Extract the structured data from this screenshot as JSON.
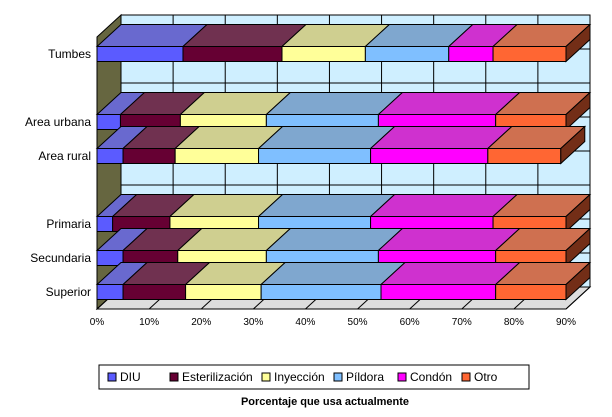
{
  "chart_data": {
    "type": "bar",
    "orientation": "horizontal",
    "stacked": true,
    "three_d": true,
    "categories": [
      "Tumbes",
      "",
      "Area urbana",
      "Area rural",
      "",
      "Primaria",
      "Secundaria",
      "Superior"
    ],
    "series": [
      {
        "name": "DIU",
        "color": "#5b5bff",
        "values": [
          16.5,
          0,
          4.5,
          5,
          0,
          3,
          5,
          5
        ]
      },
      {
        "name": "Esterilización",
        "color": "#660033",
        "values": [
          19,
          0,
          11.5,
          10,
          0,
          11,
          10.5,
          12
        ]
      },
      {
        "name": "Inyección",
        "color": "#ffff99",
        "values": [
          16,
          0,
          16.5,
          16,
          0,
          17,
          17,
          14.5
        ]
      },
      {
        "name": "Píldora",
        "color": "#7fbfff",
        "values": [
          16,
          0,
          21.5,
          21.5,
          0,
          21.5,
          21.5,
          23
        ]
      },
      {
        "name": "Condón",
        "color": "#ff00ff",
        "values": [
          8.5,
          0,
          22.5,
          22.5,
          0,
          23.5,
          22.5,
          22
        ]
      },
      {
        "name": "Otro",
        "color": "#ff6633",
        "values": [
          14,
          0,
          13.5,
          14,
          0,
          14,
          13.5,
          13.5
        ]
      }
    ],
    "xlim": [
      0,
      90
    ],
    "x_ticks": [
      "0%",
      "10%",
      "20%",
      "30%",
      "40%",
      "50%",
      "60%",
      "70%",
      "80%",
      "90%"
    ],
    "xlabel": "Porcentaje que usa actualmente",
    "legend_position": "bottom",
    "grid": true
  }
}
